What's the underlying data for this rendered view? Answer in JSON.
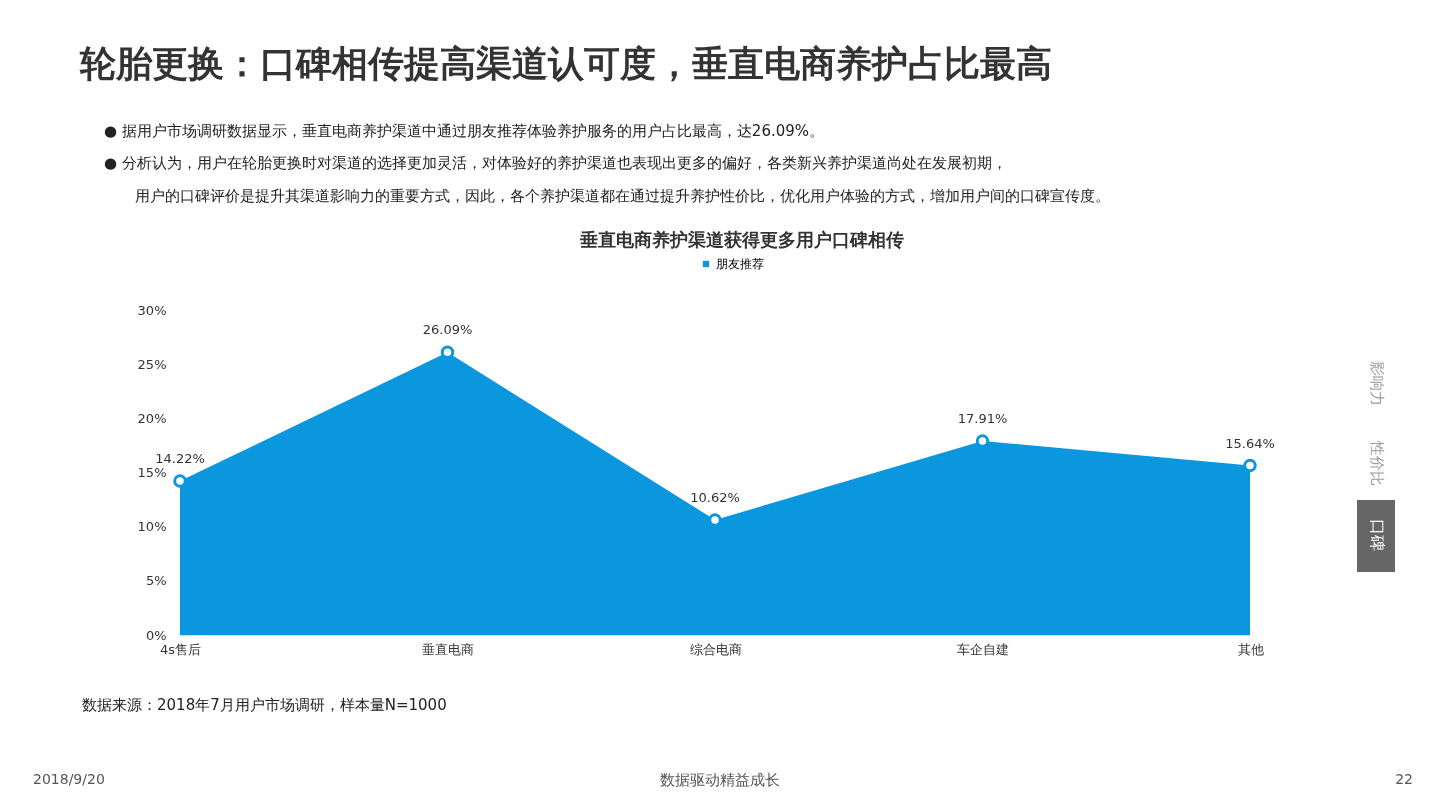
{
  "chart_data": {
    "type": "area",
    "title": "轮胎更换：口碑相传提高渠道认可度，垂直电商养护占比最高",
    "subtitle": "垂直电商养护渠道获得更多用户口碑相传",
    "categories": [
      "4s售后",
      "垂直电商",
      "综合电商",
      "车企自建",
      "其他"
    ],
    "series": [
      {
        "name": "朋友推荐",
        "color": "#0a97de",
        "values": [
          14.22,
          26.09,
          10.62,
          17.91,
          15.64
        ],
        "value_labels": [
          "14.22%",
          "26.09%",
          "10.62%",
          "17.91%",
          "15.64%"
        ]
      }
    ],
    "ylim": [
      0,
      30
    ],
    "yticks": [
      {
        "value": 0,
        "label": "0%"
      },
      {
        "value": 5,
        "label": "5%"
      },
      {
        "value": 10,
        "label": "10%"
      },
      {
        "value": 15,
        "label": "15%"
      },
      {
        "value": 20,
        "label": "20%"
      },
      {
        "value": 25,
        "label": "25%"
      },
      {
        "value": 30,
        "label": "30%"
      }
    ],
    "marker": "circle",
    "legend": "top",
    "grid": false,
    "annotations": [
      "●  据用户市场调研数据显示，垂直电商养护渠道中通过朋友推荐体验养护服务的用户占比最高，达26.09%。",
      "●  分析认为，用户在轮胎更换时对渠道的选择更加灵活，对体验好的养护渠道也表现出更多的偏好，各类新兴养护渠道尚处在发展初期，",
      "用户的口碑评价是提升其渠道影响力的重要方式，因此，各个养护渠道都在通过提升养护性价比，优化用户体验的方式，增加用户间的口碑宣传度。",
      "数据来源：2018年7月用户市场调研，样本量N=1000",
      "影响力",
      "性价比",
      "口碑",
      "2018/9/20",
      "数据驱动精益成长",
      "22"
    ]
  }
}
